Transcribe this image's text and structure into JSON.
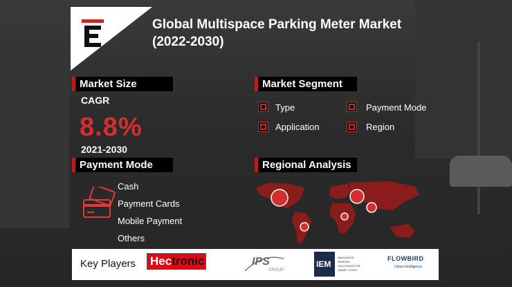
{
  "title": {
    "line1": "Global Multispace Parking Meter Market",
    "line2": "(2022-2030)"
  },
  "logo": {
    "letter": "E",
    "icon": "brand-e-icon"
  },
  "market_size": {
    "heading": "Market Size",
    "cagr_label": "CAGR",
    "cagr_value": "8.8%",
    "period": "2021-2030"
  },
  "market_segment": {
    "heading": "Market Segment",
    "items": [
      "Type",
      "Payment Mode",
      "Application",
      "Region"
    ]
  },
  "payment_mode": {
    "heading": "Payment Mode",
    "icon": "payment-cards-icon",
    "items": [
      "Cash",
      "Payment Cards",
      "Mobile Payment",
      "Others"
    ]
  },
  "regional": {
    "heading": "Regional Analysis",
    "icon": "world-map-icon"
  },
  "key_players": {
    "label": "Key Players",
    "logos": [
      {
        "name": "Hectronic",
        "hec": "Hec",
        "tronic": "tronic"
      },
      {
        "name": "IPS Group",
        "main": "IPS",
        "sub": "GROUP"
      },
      {
        "name": "IEM",
        "main": "IEM",
        "tagline": "INNOVATIVE PARKING SOLUTIONS FOR SMART CITIES"
      },
      {
        "name": "Flowbird",
        "main": "FLOWBIRD",
        "sub": "Urban Intelligence"
      }
    ]
  },
  "colors": {
    "accent": "#d32f2f",
    "bg": "#2b2b2b",
    "header": "#000000"
  }
}
